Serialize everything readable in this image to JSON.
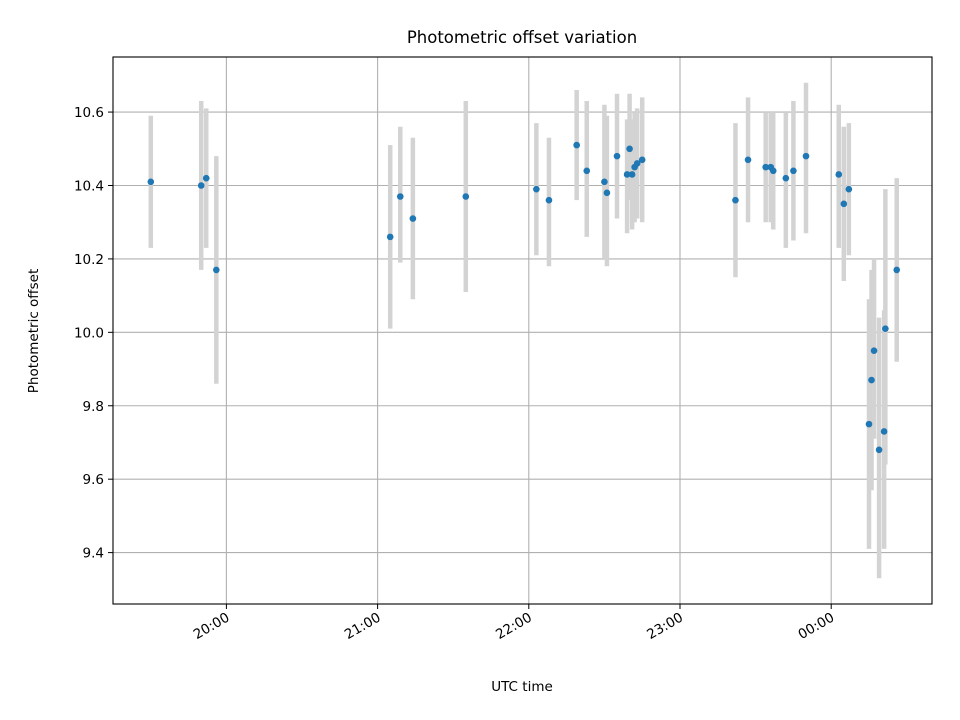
{
  "chart_data": {
    "type": "scatter",
    "title": "Photometric offset variation",
    "xlabel": "UTC time",
    "ylabel": "Photometric offset",
    "x_axis_type": "time",
    "xlim": [
      "19:15",
      "00:40"
    ],
    "ylim": [
      9.26,
      10.75
    ],
    "x_ticks": [
      {
        "value": "20:00",
        "label": "20:00"
      },
      {
        "value": "21:00",
        "label": "21:00"
      },
      {
        "value": "22:00",
        "label": "22:00"
      },
      {
        "value": "23:00",
        "label": "23:00"
      },
      {
        "value": "00:00",
        "label": "00:00"
      }
    ],
    "y_ticks": [
      {
        "value": 9.4,
        "label": "9.4"
      },
      {
        "value": 9.6,
        "label": "9.6"
      },
      {
        "value": 9.8,
        "label": "9.8"
      },
      {
        "value": 10.0,
        "label": "10.0"
      },
      {
        "value": 10.2,
        "label": "10.2"
      },
      {
        "value": 10.4,
        "label": "10.4"
      },
      {
        "value": 10.6,
        "label": "10.6"
      }
    ],
    "grid": true,
    "colors": {
      "point": "#1f77b4",
      "error_bar": "#d3d3d3",
      "grid": "#b0b0b0"
    },
    "points": [
      {
        "x": "19:30",
        "y": 10.41,
        "err_low": 10.23,
        "err_high": 10.59
      },
      {
        "x": "19:50",
        "y": 10.4,
        "err_low": 10.17,
        "err_high": 10.63
      },
      {
        "x": "19:52",
        "y": 10.42,
        "err_low": 10.23,
        "err_high": 10.61
      },
      {
        "x": "19:56",
        "y": 10.17,
        "err_low": 9.86,
        "err_high": 10.48
      },
      {
        "x": "21:05",
        "y": 10.26,
        "err_low": 10.01,
        "err_high": 10.51
      },
      {
        "x": "21:09",
        "y": 10.37,
        "err_low": 10.19,
        "err_high": 10.56
      },
      {
        "x": "21:14",
        "y": 10.31,
        "err_low": 10.09,
        "err_high": 10.53
      },
      {
        "x": "21:35",
        "y": 10.37,
        "err_low": 10.11,
        "err_high": 10.63
      },
      {
        "x": "22:03",
        "y": 10.39,
        "err_low": 10.21,
        "err_high": 10.57
      },
      {
        "x": "22:08",
        "y": 10.36,
        "err_low": 10.18,
        "err_high": 10.53
      },
      {
        "x": "22:19",
        "y": 10.51,
        "err_low": 10.36,
        "err_high": 10.66
      },
      {
        "x": "22:23",
        "y": 10.44,
        "err_low": 10.26,
        "err_high": 10.63
      },
      {
        "x": "22:30",
        "y": 10.41,
        "err_low": 10.2,
        "err_high": 10.62
      },
      {
        "x": "22:31",
        "y": 10.38,
        "err_low": 10.18,
        "err_high": 10.59
      },
      {
        "x": "22:35",
        "y": 10.48,
        "err_low": 10.31,
        "err_high": 10.65
      },
      {
        "x": "22:39",
        "y": 10.43,
        "err_low": 10.27,
        "err_high": 10.58
      },
      {
        "x": "22:40",
        "y": 10.5,
        "err_low": 10.36,
        "err_high": 10.65
      },
      {
        "x": "22:41",
        "y": 10.43,
        "err_low": 10.28,
        "err_high": 10.58
      },
      {
        "x": "22:42",
        "y": 10.45,
        "err_low": 10.3,
        "err_high": 10.6
      },
      {
        "x": "22:43",
        "y": 10.46,
        "err_low": 10.31,
        "err_high": 10.61
      },
      {
        "x": "22:45",
        "y": 10.47,
        "err_low": 10.3,
        "err_high": 10.64
      },
      {
        "x": "23:22",
        "y": 10.36,
        "err_low": 10.15,
        "err_high": 10.57
      },
      {
        "x": "23:27",
        "y": 10.47,
        "err_low": 10.3,
        "err_high": 10.64
      },
      {
        "x": "23:34",
        "y": 10.45,
        "err_low": 10.3,
        "err_high": 10.6
      },
      {
        "x": "23:36",
        "y": 10.45,
        "err_low": 10.3,
        "err_high": 10.6
      },
      {
        "x": "23:37",
        "y": 10.44,
        "err_low": 10.28,
        "err_high": 10.6
      },
      {
        "x": "23:42",
        "y": 10.42,
        "err_low": 10.23,
        "err_high": 10.6
      },
      {
        "x": "23:45",
        "y": 10.44,
        "err_low": 10.25,
        "err_high": 10.63
      },
      {
        "x": "23:50",
        "y": 10.48,
        "err_low": 10.27,
        "err_high": 10.68
      },
      {
        "x": "00:03",
        "y": 10.43,
        "err_low": 10.23,
        "err_high": 10.62
      },
      {
        "x": "00:05",
        "y": 10.35,
        "err_low": 10.14,
        "err_high": 10.56
      },
      {
        "x": "00:07",
        "y": 10.39,
        "err_low": 10.21,
        "err_high": 10.57
      },
      {
        "x": "00:15",
        "y": 9.75,
        "err_low": 9.41,
        "err_high": 10.09
      },
      {
        "x": "00:16",
        "y": 9.87,
        "err_low": 9.57,
        "err_high": 10.17
      },
      {
        "x": "00:17",
        "y": 9.95,
        "err_low": 9.71,
        "err_high": 10.2
      },
      {
        "x": "00:19",
        "y": 9.68,
        "err_low": 9.33,
        "err_high": 10.04
      },
      {
        "x": "00:21",
        "y": 9.73,
        "err_low": 9.41,
        "err_high": 10.06
      },
      {
        "x": "00:21:30",
        "y": 10.01,
        "err_low": 9.64,
        "err_high": 10.39
      },
      {
        "x": "00:26",
        "y": 10.17,
        "err_low": 9.92,
        "err_high": 10.42
      }
    ]
  }
}
